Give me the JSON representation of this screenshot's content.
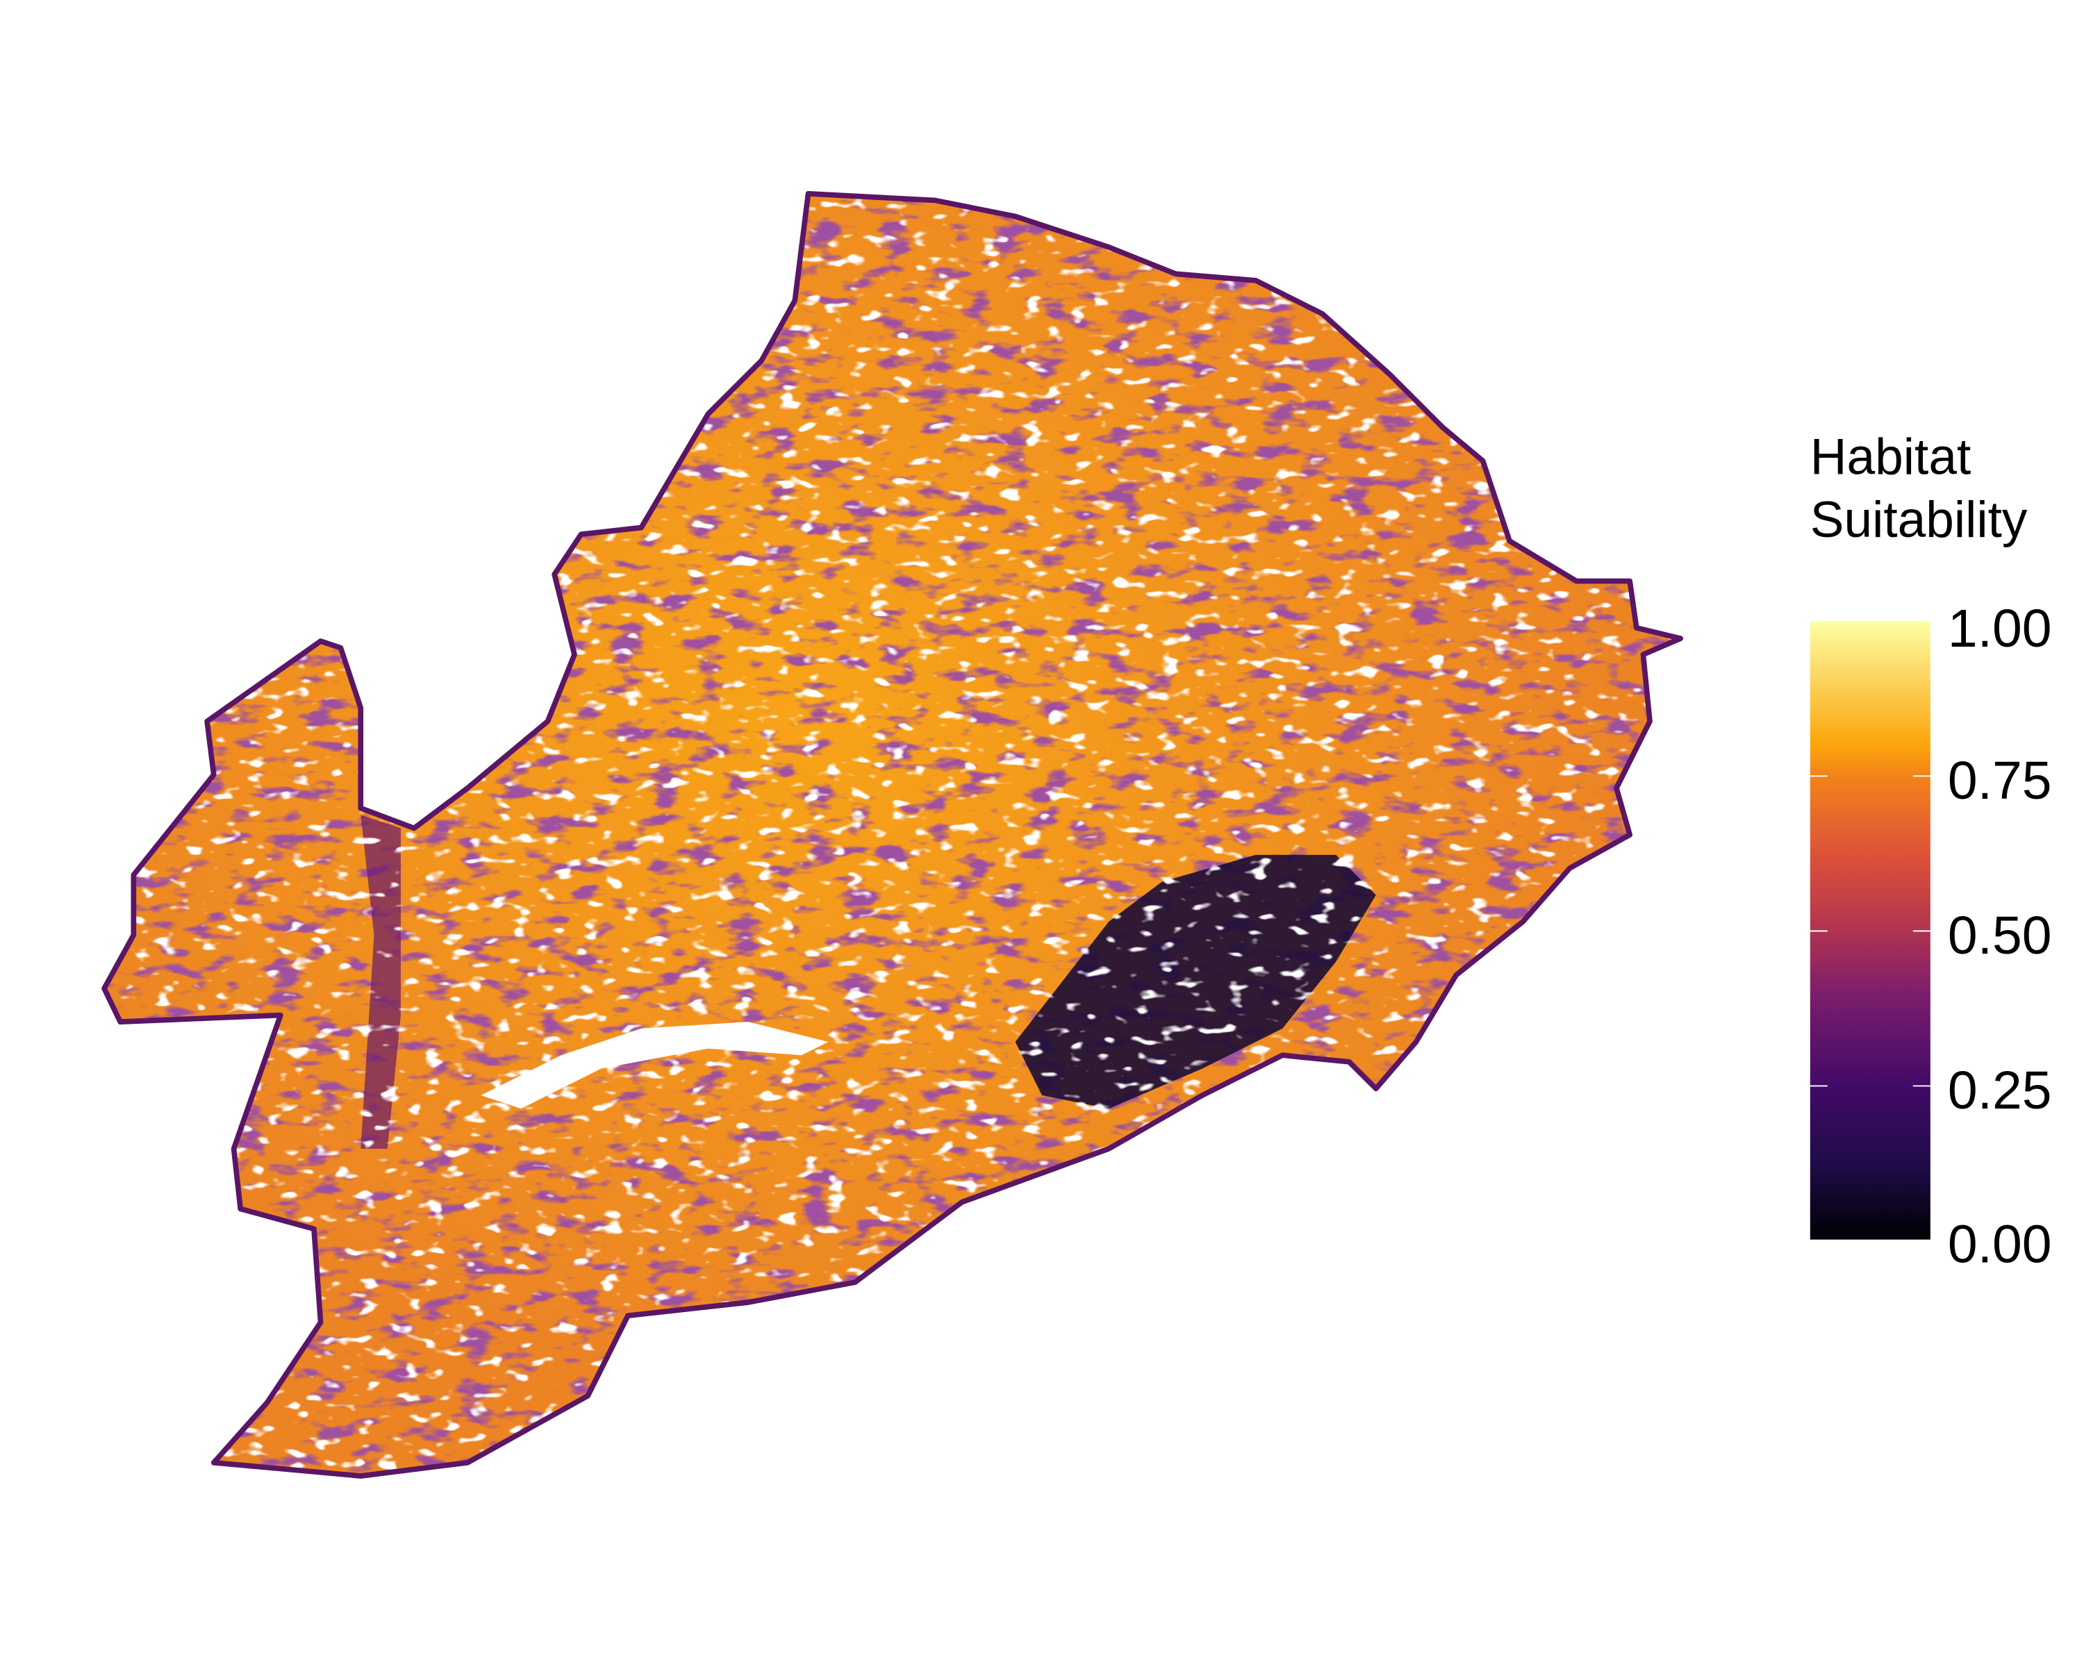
{
  "legend": {
    "title_line1": "Habitat",
    "title_line2": "Suitability",
    "ticks": [
      "1.00",
      "0.75",
      "0.50",
      "0.25",
      "0.00"
    ],
    "tick_values": [
      1.0,
      0.75,
      0.5,
      0.25,
      0.0
    ],
    "range": [
      0,
      1
    ],
    "colormap": "inferno",
    "colors": [
      "#000004",
      "#420a68",
      "#932667",
      "#dd513a",
      "#fca50a",
      "#fcffa4"
    ]
  },
  "map": {
    "outline_color": "#5a1666",
    "dominant_color": "#f0901e",
    "low_suitability_color": "#1b0c35",
    "no_data_color": "#ffffff"
  }
}
